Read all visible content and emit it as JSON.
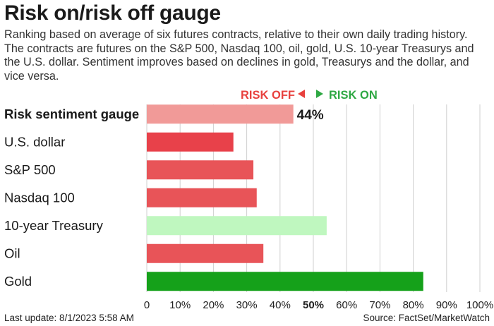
{
  "header": {
    "title": "Risk on/risk off gauge",
    "subtitle": "Ranking based on average of six futures contracts, relative to their own daily trading history. The contracts are futures on the S&P 500, Nasdaq 100, oil, gold, U.S. 10-year Treasurys and the U.S. dollar. Sentiment improves based on declines in gold, Treasurys and the dollar, and vice versa."
  },
  "legend": {
    "risk_off": "RISK OFF",
    "risk_on": "RISK ON",
    "risk_off_color": "#e8413e",
    "risk_on_color": "#2ea843"
  },
  "footer": {
    "last_update": "Last update: 8/1/2023 5:58 AM",
    "source": "Source: FactSet/MarketWatch"
  },
  "chart_data": {
    "type": "bar",
    "orientation": "horizontal",
    "categories": [
      "Risk sentiment gauge",
      "U.S. dollar",
      "S&P 500",
      "Nasdaq 100",
      "10-year Treasury",
      "Oil",
      "Gold"
    ],
    "values": [
      44,
      26,
      32,
      33,
      54,
      35,
      83
    ],
    "bar_colors": [
      "#f19a98",
      "#e8414a",
      "#e85458",
      "#e85458",
      "#bff7bf",
      "#e85458",
      "#15a11a"
    ],
    "data_labels": [
      "44%",
      "",
      "",
      "",
      "",
      "",
      ""
    ],
    "bold_categories": [
      "Risk sentiment gauge"
    ],
    "x_ticks": [
      "0",
      "10%",
      "20%",
      "30%",
      "40%",
      "50%",
      "60%",
      "70%",
      "80%",
      "90%",
      "100%"
    ],
    "bold_ticks": [
      "50%"
    ],
    "xlim": [
      0,
      100
    ],
    "grid": true
  }
}
